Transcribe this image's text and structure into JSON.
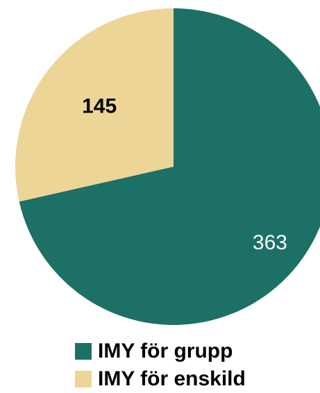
{
  "chart_data": {
    "type": "pie",
    "categories": [
      "IMY för grupp",
      "IMY för enskild"
    ],
    "values": [
      363,
      145
    ],
    "colors": [
      "#1d7065",
      "#ecd597"
    ],
    "label_colors": [
      "#ffffff",
      "#000000"
    ],
    "start_angle": "12 o'clock",
    "direction": "clockwise",
    "legend_position": "bottom"
  },
  "legend": {
    "items": [
      {
        "label": "IMY för grupp",
        "color": "#1d7065"
      },
      {
        "label": "IMY för enskild",
        "color": "#ecd597"
      }
    ]
  }
}
